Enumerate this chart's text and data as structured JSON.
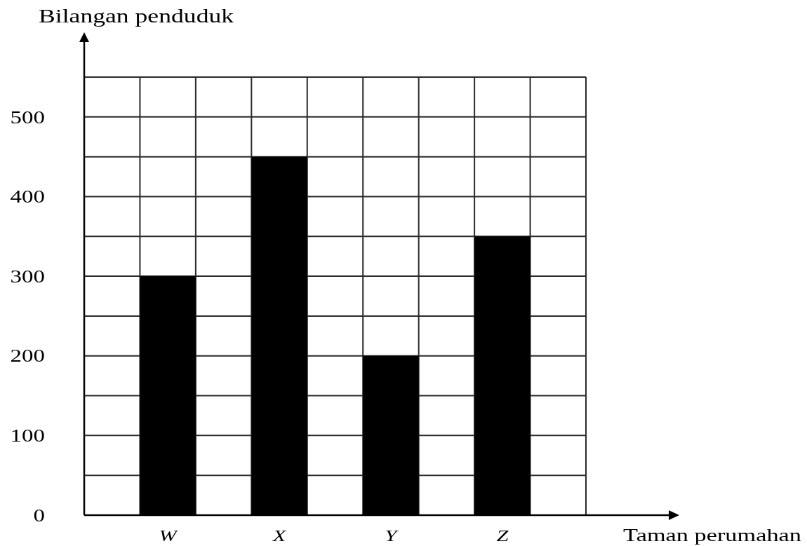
{
  "chart_data": {
    "type": "bar",
    "categories": [
      null,
      "W",
      null,
      "X",
      null,
      "Y",
      null,
      "Z",
      null
    ],
    "values": [
      null,
      300,
      null,
      450,
      null,
      200,
      null,
      350,
      null
    ],
    "color": "#000000",
    "xlabel": "Taman perumahan",
    "ylabel": "Bilangan penduduk",
    "ylim": [
      0,
      550
    ],
    "yticks": [
      0,
      {
        "value": 50,
        "label": null
      },
      100,
      {
        "value": 150,
        "label": null
      },
      200,
      {
        "value": 250,
        "label": null
      },
      300,
      {
        "value": 350,
        "label": null
      },
      400,
      {
        "value": 450,
        "label": null
      },
      500,
      {
        "value": 550,
        "label": null
      }
    ],
    "grid": true
  }
}
